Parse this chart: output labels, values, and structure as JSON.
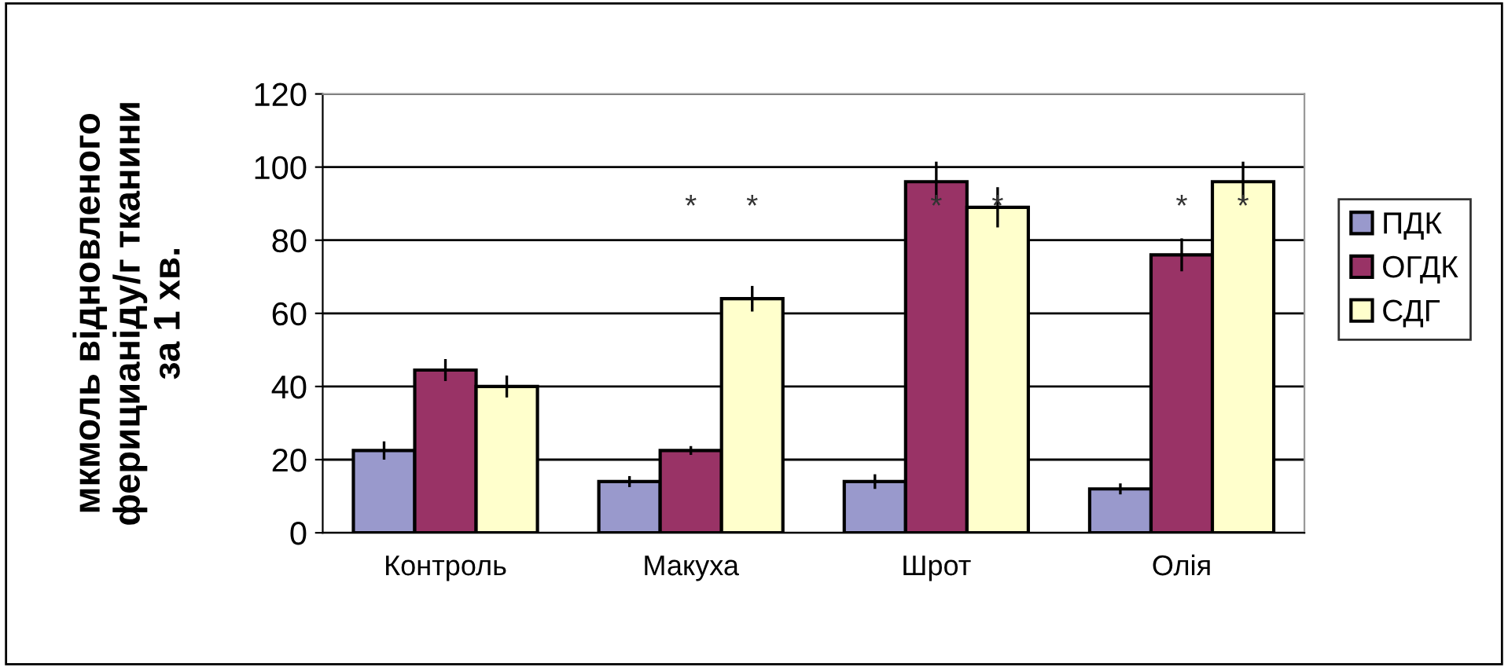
{
  "chart_data": {
    "type": "bar",
    "ylabel": "мкмоль відновленого\nферицианіду/г тканини\nза 1 хв.",
    "categories": [
      "Контроль",
      "Макуха",
      "Шрот",
      "Олія"
    ],
    "series": [
      {
        "name": "ПДК",
        "color": "#9999cc",
        "values": [
          22.5,
          14,
          14,
          12
        ],
        "errors": [
          2.5,
          1.5,
          2,
          1.5
        ]
      },
      {
        "name": "ОГДК",
        "color": "#993366",
        "values": [
          44.5,
          22.5,
          96,
          76
        ],
        "errors": [
          3,
          1.2,
          5.5,
          4.5
        ]
      },
      {
        "name": "СДГ",
        "color": "#ffffcc",
        "values": [
          40,
          64,
          89,
          96
        ],
        "errors": [
          3,
          3.5,
          5.5,
          5.5
        ]
      }
    ],
    "ylim": [
      0,
      120
    ],
    "yticks": [
      0,
      20,
      40,
      60,
      80,
      100,
      120
    ],
    "grid": "y",
    "legend": "right",
    "annotations": [
      "*",
      "*",
      "*",
      "*",
      "*",
      "*"
    ]
  }
}
